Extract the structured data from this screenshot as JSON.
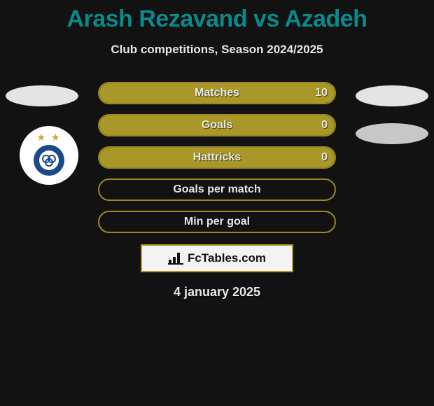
{
  "title": "Arash Rezavand vs Azadeh",
  "subtitle": "Club competitions, Season 2024/2025",
  "date": "4 january 2025",
  "brand": "FcTables.com",
  "colors": {
    "background": "#121212",
    "title": "#0a8a8a",
    "bar_border": "#9a8a20",
    "bar_fill": "#a8982a",
    "text": "#e8e8e8",
    "pill": "#e4e4e4",
    "pill_alt": "#c8c8c8"
  },
  "stats": [
    {
      "label": "Matches",
      "value_right": "10",
      "fill_pct": 100
    },
    {
      "label": "Goals",
      "value_right": "0",
      "fill_pct": 100
    },
    {
      "label": "Hattricks",
      "value_right": "0",
      "fill_pct": 100
    },
    {
      "label": "Goals per match",
      "value_right": "",
      "fill_pct": 0
    },
    {
      "label": "Min per goal",
      "value_right": "",
      "fill_pct": 0
    }
  ]
}
